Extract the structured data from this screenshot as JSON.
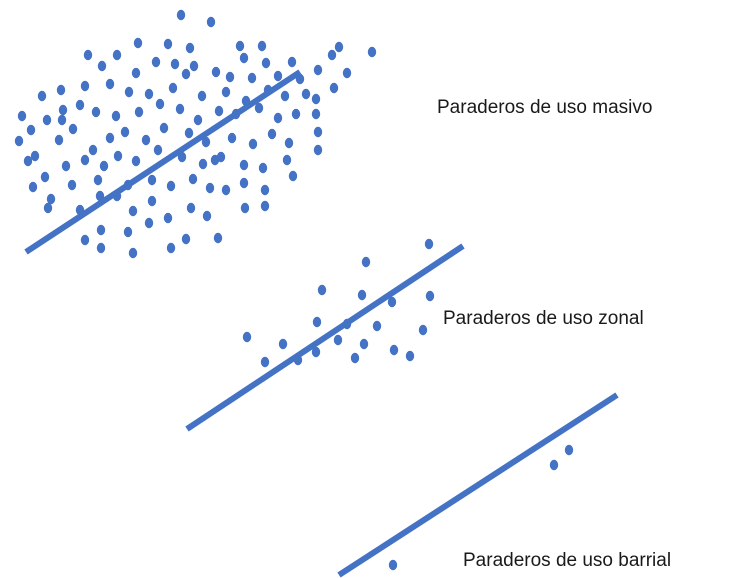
{
  "colors": {
    "accent": "#4472c4",
    "text": "#1a1a1a",
    "background": "#ffffff"
  },
  "groups": [
    {
      "id": "masivo",
      "label": "Paraderos de uso masivo",
      "density": "high"
    },
    {
      "id": "zonal",
      "label": "Paraderos de uso zonal",
      "density": "medium"
    },
    {
      "id": "barrial",
      "label": "Paraderos de uso barrial",
      "density": "low"
    }
  ]
}
